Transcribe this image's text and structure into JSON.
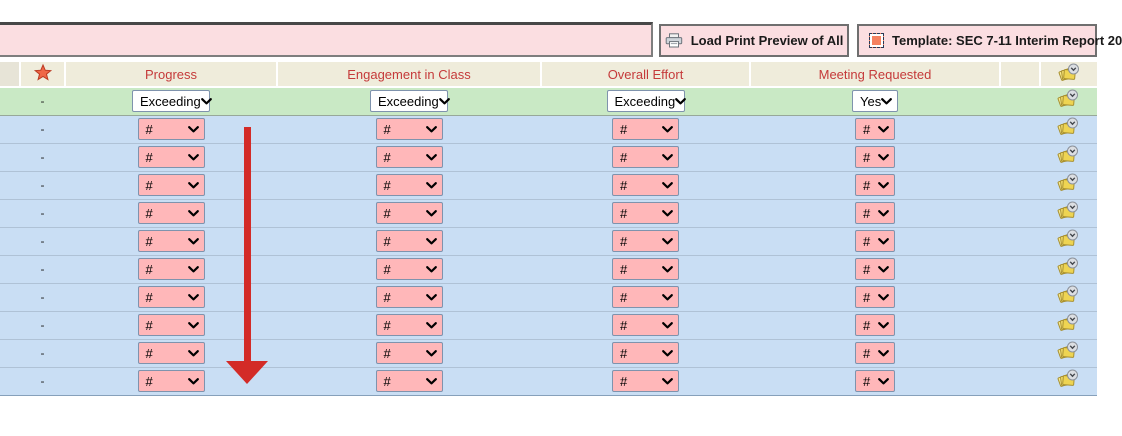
{
  "toolbar": {
    "print_preview_label": "Load Print Preview of All",
    "template_label": "Template: SEC 7-11 Interim Report 20"
  },
  "table": {
    "header": {
      "progress": "Progress",
      "engagement": "Engagement in Class",
      "overall": "Overall Effort",
      "meeting": "Meeting Requested"
    },
    "rows": [
      {
        "variant": "filled",
        "marker": "-",
        "cells": {
          "progress": "Exceeding",
          "engagement": "Exceeding",
          "overall": "Exceeding",
          "meeting": "Yes"
        }
      },
      {
        "variant": "empty",
        "marker": "-",
        "cells": {
          "progress": "#",
          "engagement": "#",
          "overall": "#",
          "meeting": "#"
        }
      },
      {
        "variant": "empty",
        "marker": "-",
        "cells": {
          "progress": "#",
          "engagement": "#",
          "overall": "#",
          "meeting": "#"
        }
      },
      {
        "variant": "empty",
        "marker": "-",
        "cells": {
          "progress": "#",
          "engagement": "#",
          "overall": "#",
          "meeting": "#"
        }
      },
      {
        "variant": "empty",
        "marker": "-",
        "cells": {
          "progress": "#",
          "engagement": "#",
          "overall": "#",
          "meeting": "#"
        }
      },
      {
        "variant": "empty",
        "marker": "-",
        "cells": {
          "progress": "#",
          "engagement": "#",
          "overall": "#",
          "meeting": "#"
        }
      },
      {
        "variant": "empty",
        "marker": "-",
        "cells": {
          "progress": "#",
          "engagement": "#",
          "overall": "#",
          "meeting": "#"
        }
      },
      {
        "variant": "empty",
        "marker": "-",
        "cells": {
          "progress": "#",
          "engagement": "#",
          "overall": "#",
          "meeting": "#"
        }
      },
      {
        "variant": "empty",
        "marker": "-",
        "cells": {
          "progress": "#",
          "engagement": "#",
          "overall": "#",
          "meeting": "#"
        }
      },
      {
        "variant": "empty",
        "marker": "-",
        "cells": {
          "progress": "#",
          "engagement": "#",
          "overall": "#",
          "meeting": "#"
        }
      },
      {
        "variant": "empty",
        "marker": "-",
        "cells": {
          "progress": "#",
          "engagement": "#",
          "overall": "#",
          "meeting": "#"
        }
      }
    ]
  },
  "icons": {
    "printer": "printer-icon",
    "template": "template-icon",
    "star": "star-icon",
    "notes": "notes-icon",
    "chevron": "chevron-down-icon"
  },
  "annotation": {
    "type": "red-arrow-down",
    "color": "#d32b27"
  },
  "colors": {
    "toolbar_panel_bg": "#fbdee1",
    "header_bg": "#efecdb",
    "header_text": "#c53a3a",
    "filled_row_bg": "#c9e9c5",
    "empty_row_bg": "#c9def4",
    "empty_select_bg": "#ffb7b9",
    "select_border": "#7f93ad",
    "arrow": "#d32b27",
    "star": "#ef6747"
  }
}
